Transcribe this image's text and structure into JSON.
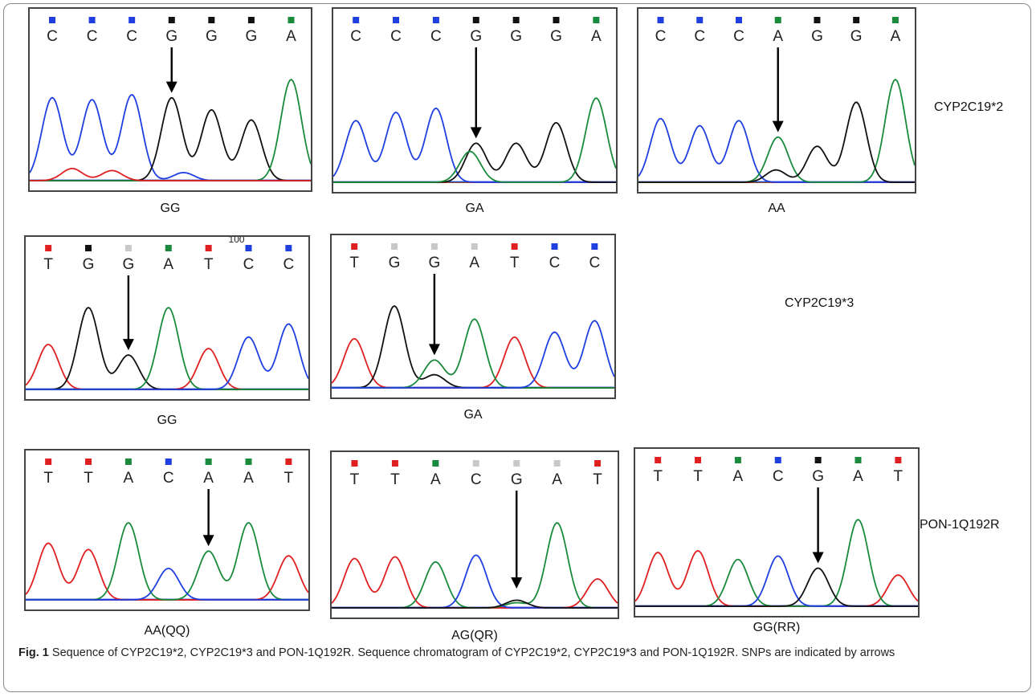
{
  "colors": {
    "C": "#1f3fe0",
    "G": "#111111",
    "A": "#1a8a3c",
    "T": "#e02020",
    "dim": "#c8c8c8"
  },
  "row_labels": [
    "CYP2C19*2",
    "CYP2C19*3",
    "PON-1Q192R"
  ],
  "caption": {
    "label": "Fig. 1",
    "text": " Sequence of CYP2C19*2, CYP2C19*3 and PON-1Q192R. Sequence chromatogram of CYP2C19*2, CYP2C19*3 and PON-1Q192R. SNPs are indicated by arrows"
  },
  "panels": [
    {
      "genotype": "GG",
      "bases": [
        "C",
        "C",
        "C",
        "G",
        "G",
        "G",
        "A"
      ],
      "marker_colors": [
        "C",
        "C",
        "C",
        "G",
        "G",
        "G",
        "A"
      ],
      "peaks": [
        [
          "C",
          0.82
        ],
        [
          "C",
          0.8
        ],
        [
          "C",
          0.85
        ],
        [
          "G",
          0.82
        ],
        [
          "G",
          0.7
        ],
        [
          "G",
          0.6
        ],
        [
          "A",
          1.0
        ]
      ],
      "minor": [
        [
          "T",
          0.5,
          0.12
        ],
        [
          "T",
          1.5,
          0.1
        ],
        [
          "C",
          3.3,
          0.08
        ]
      ],
      "arrow_index": 3
    },
    {
      "genotype": "GA",
      "bases": [
        "C",
        "C",
        "C",
        "G",
        "G",
        "G",
        "A"
      ],
      "marker_colors": [
        "C",
        "C",
        "C",
        "G",
        "G",
        "G",
        "A"
      ],
      "peaks": [
        [
          "C",
          0.6
        ],
        [
          "C",
          0.68
        ],
        [
          "C",
          0.72
        ],
        [
          "G",
          0.38
        ],
        [
          "G",
          0.38
        ],
        [
          "G",
          0.58
        ],
        [
          "A",
          0.82
        ]
      ],
      "minor": [
        [
          "A",
          2.85,
          0.3
        ]
      ],
      "arrow_index": 3
    },
    {
      "genotype": "AA",
      "bases": [
        "C",
        "C",
        "C",
        "A",
        "G",
        "G",
        "A"
      ],
      "marker_colors": [
        "C",
        "C",
        "C",
        "A",
        "G",
        "G",
        "A"
      ],
      "peaks": [
        [
          "C",
          0.62
        ],
        [
          "C",
          0.55
        ],
        [
          "C",
          0.6
        ],
        [
          "A",
          0.44
        ],
        [
          "G",
          0.35
        ],
        [
          "G",
          0.78
        ],
        [
          "A",
          1.0
        ]
      ],
      "minor": [
        [
          "G",
          2.95,
          0.12
        ]
      ],
      "arrow_index": 3
    },
    {
      "genotype": "GG",
      "bases": [
        "T",
        "G",
        "G",
        "A",
        "T",
        "C",
        "C"
      ],
      "marker_colors": [
        "T",
        "G",
        "dim",
        "A",
        "T",
        "C",
        "C"
      ],
      "peaks": [
        [
          "T",
          0.55
        ],
        [
          "G",
          1.0
        ],
        [
          "G",
          0.42
        ],
        [
          "A",
          1.0
        ],
        [
          "T",
          0.5
        ],
        [
          "C",
          0.64
        ],
        [
          "C",
          0.8
        ]
      ],
      "minor": [],
      "arrow_index": 2,
      "stray": "100"
    },
    {
      "genotype": "GA",
      "bases": [
        "T",
        "G",
        "G",
        "A",
        "T",
        "C",
        "C"
      ],
      "marker_colors": [
        "T",
        "dim",
        "dim",
        "dim",
        "T",
        "C",
        "C"
      ],
      "peaks": [
        [
          "T",
          0.6
        ],
        [
          "G",
          1.0
        ],
        [
          "A",
          0.34
        ],
        [
          "A",
          0.84
        ],
        [
          "T",
          0.62
        ],
        [
          "C",
          0.68
        ],
        [
          "C",
          0.82
        ]
      ],
      "minor": [
        [
          "G",
          2.0,
          0.16
        ]
      ],
      "arrow_index": 2
    },
    {
      "genotype": "AA(QQ)",
      "bases": [
        "T",
        "T",
        "A",
        "C",
        "A",
        "A",
        "T"
      ],
      "marker_colors": [
        "T",
        "T",
        "A",
        "C",
        "A",
        "A",
        "T"
      ],
      "peaks": [
        [
          "T",
          0.72
        ],
        [
          "T",
          0.64
        ],
        [
          "A",
          0.98
        ],
        [
          "C",
          0.4
        ],
        [
          "A",
          0.62
        ],
        [
          "A",
          0.98
        ],
        [
          "T",
          0.56
        ]
      ],
      "minor": [],
      "arrow_index": 4
    },
    {
      "genotype": "AG(QR)",
      "bases": [
        "T",
        "T",
        "A",
        "C",
        "G",
        "A",
        "T"
      ],
      "marker_colors": [
        "T",
        "T",
        "A",
        "dim",
        "dim",
        "dim",
        "T"
      ],
      "peaks": [
        [
          "T",
          0.58
        ],
        [
          "T",
          0.6
        ],
        [
          "A",
          0.54
        ],
        [
          "C",
          0.62
        ],
        [
          "G",
          0.09
        ],
        [
          "A",
          1.0
        ],
        [
          "T",
          0.34
        ]
      ],
      "minor": [
        [
          "A",
          4.0,
          0.06
        ]
      ],
      "arrow_index": 4
    },
    {
      "genotype": "GG(RR)",
      "bases": [
        "T",
        "T",
        "A",
        "C",
        "G",
        "A",
        "T"
      ],
      "marker_colors": [
        "T",
        "T",
        "A",
        "C",
        "G",
        "A",
        "T"
      ],
      "peaks": [
        [
          "T",
          0.62
        ],
        [
          "T",
          0.64
        ],
        [
          "A",
          0.54
        ],
        [
          "C",
          0.58
        ],
        [
          "G",
          0.44
        ],
        [
          "A",
          1.0
        ],
        [
          "T",
          0.36
        ]
      ],
      "minor": [],
      "arrow_index": 4
    }
  ]
}
